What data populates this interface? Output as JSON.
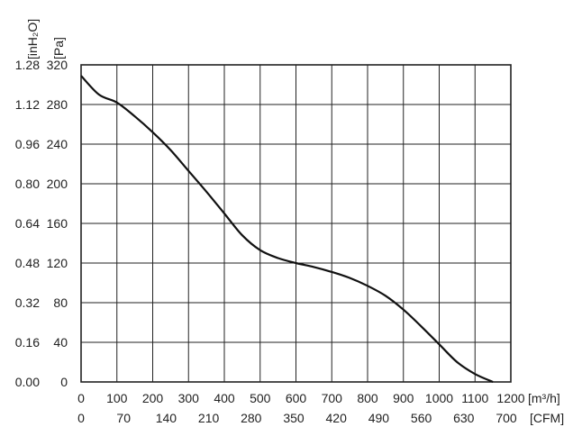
{
  "chart_data": {
    "type": "line",
    "grid": true,
    "x_primary": {
      "label": "[m³/h]",
      "ticks": [
        0,
        100,
        200,
        300,
        400,
        500,
        600,
        700,
        800,
        900,
        1000,
        1100,
        1200
      ],
      "range": [
        0,
        1200
      ]
    },
    "x_secondary": {
      "label": "[CFM]",
      "ticks": [
        "0",
        "70",
        "140",
        "210",
        "280",
        "350",
        "420",
        "490",
        "560",
        "630",
        "700"
      ]
    },
    "y_primary": {
      "label": "[Pa]",
      "ticks": [
        0,
        40,
        80,
        120,
        160,
        200,
        240,
        280,
        320
      ],
      "range": [
        0,
        320
      ]
    },
    "y_secondary": {
      "label": "[inH₂O]",
      "ticks": [
        "0.00",
        "0.16",
        "0.32",
        "0.48",
        "0.64",
        "0.80",
        "0.96",
        "1.12",
        "1.28"
      ]
    },
    "series": [
      {
        "x": [
          0,
          50,
          100,
          150,
          200,
          250,
          300,
          350,
          400,
          450,
          500,
          550,
          600,
          650,
          700,
          750,
          800,
          850,
          900,
          950,
          1000,
          1050,
          1100,
          1150
        ],
        "y": [
          309,
          290,
          282,
          268,
          252,
          234,
          213,
          192,
          170,
          148,
          133,
          125,
          120,
          116,
          111,
          105,
          97,
          87,
          73,
          56,
          38,
          20,
          8,
          0
        ]
      }
    ]
  }
}
